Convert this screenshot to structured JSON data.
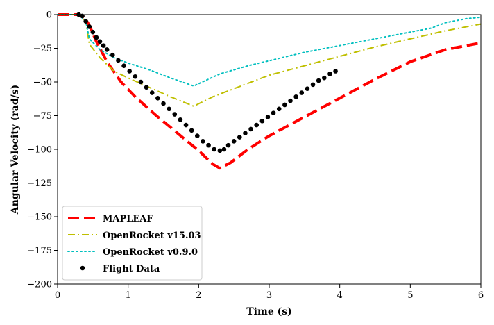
{
  "chart_data": {
    "type": "line",
    "title": "",
    "xlabel": "Time (s)",
    "ylabel": "Angular Velocity (rad/s)",
    "xlim": [
      0,
      6
    ],
    "ylim": [
      -200,
      0
    ],
    "xticks": [
      0,
      1,
      2,
      3,
      4,
      5,
      6
    ],
    "yticks": [
      0,
      -25,
      -50,
      -75,
      -100,
      -125,
      -150,
      -175,
      -200
    ],
    "grid": false,
    "legend_position": "lower-left",
    "series": [
      {
        "name": "MAPLEAF",
        "color": "#ff0000",
        "style": "dashed",
        "x": [
          0,
          0.3,
          0.38,
          0.45,
          0.55,
          0.7,
          0.9,
          1.1,
          1.4,
          1.7,
          2.0,
          2.2,
          2.3,
          2.45,
          2.7,
          3.0,
          3.5,
          4.0,
          4.5,
          5.0,
          5.5,
          6.0
        ],
        "y": [
          0,
          0,
          -2,
          -8,
          -20,
          -35,
          -50,
          -61,
          -75,
          -88,
          -101,
          -111,
          -114,
          -110,
          -100,
          -90,
          -76,
          -62,
          -48,
          -35,
          -26,
          -21
        ]
      },
      {
        "name": "OpenRocket v15.03",
        "color": "#bfbf00",
        "style": "dashdot",
        "x": [
          0,
          0.3,
          0.4,
          0.45,
          0.6,
          0.8,
          1.0,
          1.3,
          1.6,
          1.93,
          2.2,
          2.6,
          3.0,
          3.5,
          4.0,
          4.5,
          5.0,
          5.5,
          6.0
        ],
        "y": [
          0,
          0,
          -5,
          -22,
          -32,
          -42,
          -47,
          -54,
          -61,
          -68,
          -61,
          -53,
          -45,
          -38,
          -31,
          -24,
          -18,
          -12,
          -7
        ]
      },
      {
        "name": "OpenRocket v0.9.0",
        "color": "#00bfbf",
        "style": "dotted",
        "x": [
          0,
          0.3,
          0.4,
          0.45,
          0.6,
          0.8,
          1.0,
          1.3,
          1.6,
          1.93,
          2.3,
          2.7,
          3.1,
          3.5,
          4.0,
          4.5,
          5.0,
          5.3,
          5.5,
          5.8,
          6.0
        ],
        "y": [
          0,
          0,
          -5,
          -18,
          -26,
          -32,
          -36,
          -41,
          -47,
          -53,
          -44,
          -38,
          -33,
          -28,
          -23,
          -18,
          -13,
          -10,
          -6,
          -3,
          -2
        ]
      },
      {
        "name": "Flight Data",
        "color": "#000000",
        "style": "markers",
        "x": [
          0.3,
          0.35,
          0.4,
          0.45,
          0.5,
          0.55,
          0.6,
          0.65,
          0.7,
          0.78,
          0.86,
          0.94,
          1.02,
          1.1,
          1.18,
          1.26,
          1.34,
          1.42,
          1.5,
          1.58,
          1.66,
          1.74,
          1.82,
          1.9,
          1.98,
          2.06,
          2.14,
          2.22,
          2.3,
          2.36,
          2.42,
          2.5,
          2.58,
          2.66,
          2.74,
          2.82,
          2.9,
          2.98,
          3.06,
          3.14,
          3.22,
          3.3,
          3.38,
          3.46,
          3.54,
          3.62,
          3.7,
          3.78,
          3.86,
          3.94
        ],
        "y": [
          0,
          -1,
          -5,
          -9,
          -13,
          -17,
          -20,
          -23,
          -26,
          -30,
          -34,
          -38,
          -42,
          -46,
          -50,
          -54,
          -58,
          -62,
          -66,
          -70,
          -74,
          -78,
          -82,
          -86,
          -90,
          -94,
          -97,
          -100,
          -101,
          -100,
          -97,
          -94,
          -91,
          -88,
          -85,
          -82,
          -79,
          -76,
          -73,
          -70,
          -67,
          -64,
          -61,
          -58,
          -55,
          -52,
          -49,
          -47,
          -44,
          -42
        ]
      }
    ]
  }
}
